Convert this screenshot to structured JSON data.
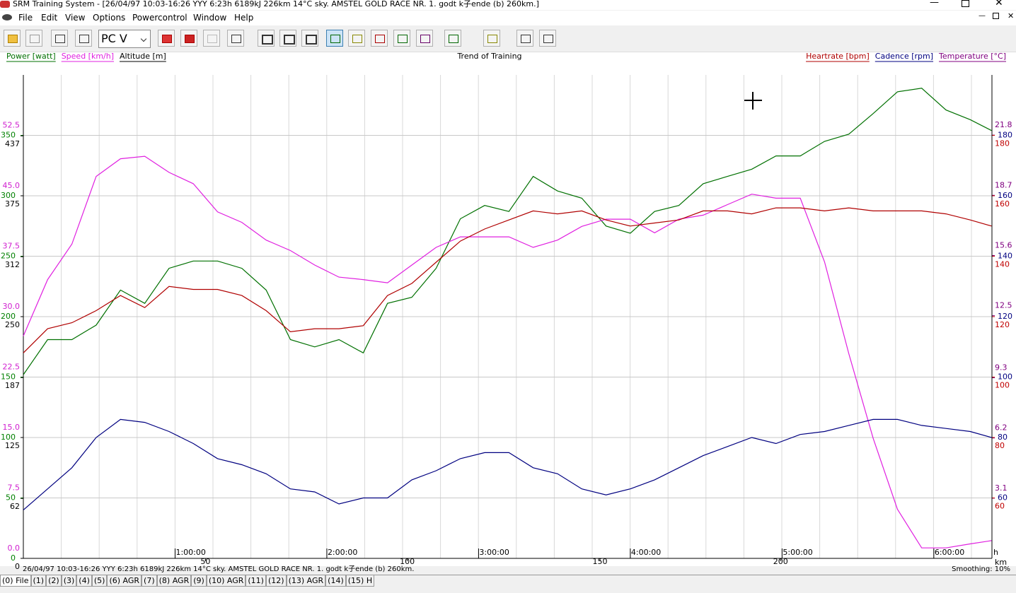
{
  "window": {
    "title": "SRM Training System - [26/04/97 10:03-16:26 YYY 6:23h 6189kJ 226km 14°C sky. AMSTEL GOLD RACE NR. 1. godt k子ende (b) 260km.]"
  },
  "menu": [
    "File",
    "Edit",
    "View",
    "Options",
    "Powercontrol",
    "Window",
    "Help"
  ],
  "toolbar": {
    "dropdown": "PC V"
  },
  "chart_data": {
    "type": "line",
    "title": "Trend of Training",
    "x": [
      0,
      0.16,
      0.32,
      0.48,
      0.64,
      0.8,
      0.96,
      1.12,
      1.28,
      1.44,
      1.6,
      1.76,
      1.92,
      2.08,
      2.24,
      2.4,
      2.56,
      2.72,
      2.88,
      3.04,
      3.2,
      3.36,
      3.52,
      3.68,
      3.84,
      4,
      4.16,
      4.32,
      4.48,
      4.64,
      4.8,
      4.96,
      5.12,
      5.28,
      5.44,
      5.6,
      5.76,
      5.92,
      6.08,
      6.24,
      6.38
    ],
    "xlim": [
      0,
      6.383
    ],
    "x_label": "h",
    "xticks": [
      {
        "value": 1,
        "label": "1:00:00"
      },
      {
        "value": 2,
        "label": "2:00:00"
      },
      {
        "value": 3,
        "label": "3:00:00"
      },
      {
        "value": 4,
        "label": "4:00:00"
      },
      {
        "value": 5,
        "label": "5:00:00"
      },
      {
        "value": 6,
        "label": "6:00:00"
      }
    ],
    "x2_label": "km",
    "x2ticks": [
      {
        "value": 1.2,
        "label": "50"
      },
      {
        "value": 2.53,
        "label": "100"
      },
      {
        "value": 3.8,
        "label": "150"
      },
      {
        "value": 4.99,
        "label": "200"
      }
    ],
    "y_axes": [
      {
        "side": "left",
        "color": "#d020d0",
        "ylim": [
          0,
          60
        ],
        "yticks": [
          {
            "value": 0,
            "label": "0.0"
          },
          7.5,
          {
            "value": 15,
            "label": "15.0"
          },
          22.5,
          {
            "value": 30,
            "label": "30.0"
          },
          37.5,
          {
            "value": 45,
            "label": "45.0"
          },
          52.5
        ]
      },
      {
        "side": "left",
        "color": "#008000",
        "grid": true,
        "ylim": [
          0,
          400
        ],
        "yticks": [
          0,
          50,
          100,
          150,
          200,
          250,
          300,
          350
        ]
      },
      {
        "side": "left",
        "color": "#000000",
        "ylim": [
          0,
          500
        ],
        "yticks": [
          0,
          62,
          125,
          187,
          250,
          312,
          375,
          437
        ]
      },
      {
        "side": "right",
        "color": "#800080",
        "ylim": [
          0,
          24.9
        ],
        "yticks": [
          3.1,
          6.2,
          9.3,
          12.5,
          15.6,
          18.7,
          21.8
        ]
      },
      {
        "side": "right",
        "color": "#000080",
        "ylim": [
          40,
          200
        ],
        "yticks": [
          60,
          80,
          100,
          120,
          140,
          160,
          180
        ]
      },
      {
        "side": "right",
        "color": "#c00000",
        "ylim": [
          40,
          200
        ],
        "yticks": [
          60,
          80,
          100,
          120,
          140,
          160,
          180
        ]
      }
    ],
    "series": [
      {
        "name": "Power [watt]",
        "color": "#007000",
        "axis": 1,
        "values": [
          152,
          181,
          181,
          193,
          222,
          211,
          240,
          246,
          246,
          240,
          222,
          181,
          175,
          181,
          170,
          211,
          216,
          240,
          281,
          292,
          287,
          316,
          304,
          298,
          275,
          269,
          287,
          292,
          310,
          316,
          322,
          333,
          333,
          345,
          351,
          368,
          386,
          389,
          371,
          363,
          354
        ]
      },
      {
        "name": "Speed [km/h]",
        "color": "#e020e0",
        "axis": 0,
        "values": [
          27.6,
          34.6,
          39,
          47.4,
          49.6,
          49.9,
          47.9,
          46.5,
          43,
          41.7,
          39.5,
          38.2,
          36.4,
          34.9,
          34.6,
          34.2,
          36.4,
          38.6,
          39.9,
          39.9,
          39.9,
          38.6,
          39.5,
          41.2,
          42.1,
          42.1,
          40.4,
          42.1,
          42.6,
          43.9,
          45.2,
          44.7,
          44.7,
          36.8,
          25.4,
          14.9,
          6.1,
          1.3,
          1.3,
          1.8,
          2.2
        ]
      },
      {
        "name": "Altitude [m]",
        "color": "#000000",
        "axis": 2
      },
      {
        "name": "Temperature [°C]",
        "color": "#800080",
        "axis": 3
      },
      {
        "name": "Cadence [rpm]",
        "color": "#000080",
        "axis": 4,
        "values": [
          56,
          63,
          70,
          80,
          86,
          85,
          82,
          78,
          73,
          71,
          68,
          63,
          62,
          58,
          60,
          60,
          66,
          69,
          73,
          75,
          75,
          70,
          68,
          63,
          61,
          63,
          66,
          70,
          74,
          77,
          80,
          78,
          81,
          82,
          84,
          86,
          86,
          84,
          83,
          82,
          80
        ]
      },
      {
        "name": "Heartrate [bpm]",
        "color": "#b00000",
        "axis": 5,
        "values": [
          108,
          116,
          118,
          122,
          127,
          123,
          130,
          129,
          129,
          127,
          122,
          115,
          116,
          116,
          117,
          127,
          131,
          138,
          145,
          149,
          152,
          155,
          154,
          155,
          152,
          150,
          151,
          152,
          155,
          155,
          154,
          156,
          156,
          155,
          156,
          155,
          155,
          155,
          154,
          152,
          150
        ]
      }
    ]
  },
  "status": {
    "left": "26/04/97 10:03-16:26 YYY 6:23h 6189kJ 226km 14°C sky. AMSTEL GOLD RACE NR. 1. godt k子ende (b) 260km.",
    "right": "Smoothing: 10%"
  },
  "tabs": [
    "(0) File",
    "(1)",
    "(2)",
    "(3)",
    "(4)",
    "(5)",
    "(6) AGR",
    "(7)",
    "(8) AGR",
    "(9)",
    "(10) AGR",
    "(11)",
    "(12)",
    "(13) AGR",
    "(14)",
    "(15) H"
  ]
}
